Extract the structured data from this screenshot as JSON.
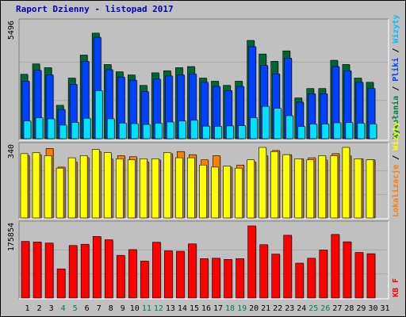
{
  "chart_data": {
    "type": "bar",
    "title": "Raport Dzienny -  listopad 2017",
    "categories": [
      "1",
      "2",
      "3",
      "4",
      "5",
      "6",
      "7",
      "8",
      "9",
      "10",
      "11",
      "12",
      "13",
      "14",
      "15",
      "16",
      "17",
      "18",
      "19",
      "20",
      "21",
      "22",
      "23",
      "24",
      "25",
      "26",
      "27",
      "28",
      "29",
      "30",
      "31"
    ],
    "weekend_days": [
      4,
      5,
      11,
      12,
      18,
      19,
      25,
      26
    ],
    "panels": [
      {
        "name": "top",
        "ymax_label": "5496",
        "ymax": 5496,
        "right_label_parts": [
          {
            "text": "Wywołania",
            "color": "#008040"
          },
          {
            "text": " / ",
            "color": "#000000"
          },
          {
            "text": "Pliki",
            "color": "#0040ff"
          },
          {
            "text": " / ",
            "color": "#000000"
          },
          {
            "text": "Wizyty",
            "color": "#00c0ff"
          }
        ],
        "series": [
          {
            "key": "hits",
            "color": "#006633",
            "values": [
              3080,
              3580,
              3400,
              1600,
              2900,
              4000,
              5050,
              3550,
              3200,
              3050,
              2550,
              3150,
              3250,
              3400,
              3450,
              2900,
              2750,
              2550,
              2750,
              4700,
              4050,
              3700,
              4200,
              1950,
              2400,
              2400,
              3750,
              3550,
              2900,
              2700,
              null
            ]
          },
          {
            "key": "files",
            "color": "#0040ff",
            "values": [
              2750,
              3270,
              3050,
              1400,
              2600,
              3700,
              4850,
              3300,
              2950,
              2800,
              2250,
              2850,
              3000,
              3050,
              3100,
              2700,
              2500,
              2300,
              2500,
              4400,
              3500,
              3100,
              3850,
              1750,
              2150,
              2150,
              3450,
              3250,
              2700,
              2400,
              null
            ]
          },
          {
            "key": "visits",
            "color": "#00e0ff",
            "values": [
              850,
              1000,
              950,
              650,
              780,
              980,
              2300,
              950,
              750,
              720,
              680,
              740,
              800,
              850,
              880,
              600,
              590,
              610,
              620,
              1000,
              1550,
              1450,
              1100,
              580,
              700,
              700,
              760,
              770,
              740,
              700,
              null
            ]
          }
        ]
      },
      {
        "name": "middle",
        "ymax_label": "340",
        "ymax": 340,
        "right_label_parts": [
          {
            "text": "Lokalizacje",
            "color": "#ff8000"
          },
          {
            "text": " / ",
            "color": "#000000"
          },
          {
            "text": "Wizyty",
            "color": "#ffff00"
          }
        ],
        "series": [
          {
            "key": "sites",
            "color": "#ff8000",
            "values": [
              300,
              305,
              335,
              245,
              270,
              290,
              320,
              285,
              300,
              295,
              270,
              280,
              310,
              320,
              305,
              280,
              300,
              245,
              255,
              270,
              300,
              325,
              305,
              285,
              290,
              280,
              310,
              300,
              285,
              280,
              null
            ]
          },
          {
            "key": "visits",
            "color": "#ffff00",
            "values": [
              310,
              315,
              300,
              240,
              290,
              300,
              330,
              315,
              285,
              280,
              285,
              285,
              315,
              290,
              290,
              255,
              245,
              250,
              240,
              280,
              340,
              320,
              305,
              285,
              280,
              300,
              300,
              345,
              285,
              280,
              null
            ]
          }
        ]
      },
      {
        "name": "bottom",
        "ymax_label": "175854",
        "ymax": 175854,
        "right_label_parts": [
          {
            "text": "KB F",
            "color": "#ff0000"
          }
        ],
        "series": [
          {
            "key": "kbytes",
            "color": "#ff0000",
            "values": [
              138000,
              136500,
              134000,
              71000,
              128000,
              131000,
              150000,
              142000,
              104000,
              118000,
              90000,
              136000,
              115000,
              114000,
              132000,
              96000,
              97000,
              94000,
              96000,
              178000,
              130000,
              107000,
              153000,
              85000,
              97000,
              117000,
              155000,
              137000,
              111000,
              108000,
              null
            ]
          }
        ]
      }
    ]
  }
}
